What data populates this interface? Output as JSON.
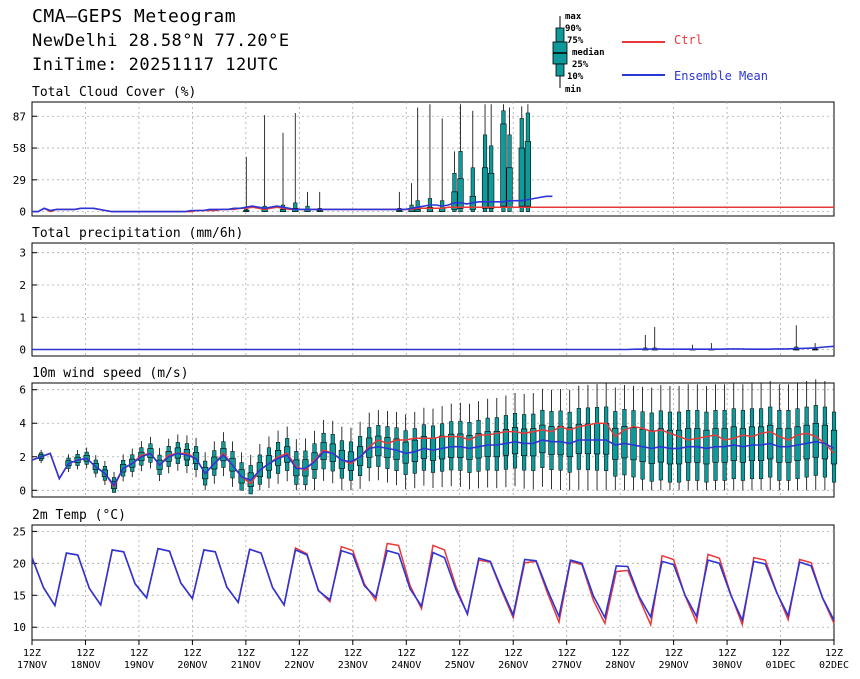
{
  "header": {
    "title": "CMA—GEPS Meteogram",
    "location": "NewDelhi 28.58°N 77.20°E",
    "init_time": "IniTime: 20251117 12UTC"
  },
  "legend": {
    "box_labels": [
      "max",
      "90%",
      "75%",
      "median",
      "25%",
      "10%",
      "min"
    ],
    "ctrl_label": "Ctrl",
    "ctrl_color": "#e8393a",
    "mean_label": "Ensemble Mean",
    "mean_color": "#2c35d6",
    "box_fill": "#0e9a9a"
  },
  "x_axis": {
    "ticks": [
      {
        "hour": "12Z",
        "date": "17NOV"
      },
      {
        "hour": "12Z",
        "date": "18NOV"
      },
      {
        "hour": "12Z",
        "date": "19NOV"
      },
      {
        "hour": "12Z",
        "date": "20NOV"
      },
      {
        "hour": "12Z",
        "date": "21NOV"
      },
      {
        "hour": "12Z",
        "date": "22NOV"
      },
      {
        "hour": "12Z",
        "date": "23NOV"
      },
      {
        "hour": "12Z",
        "date": "24NOV"
      },
      {
        "hour": "12Z",
        "date": "25NOV"
      },
      {
        "hour": "12Z",
        "date": "26NOV"
      },
      {
        "hour": "12Z",
        "date": "27NOV"
      },
      {
        "hour": "12Z",
        "date": "28NOV"
      },
      {
        "hour": "12Z",
        "date": "29NOV"
      },
      {
        "hour": "12Z",
        "date": "30NOV"
      },
      {
        "hour": "12Z",
        "date": "01DEC"
      },
      {
        "hour": "12Z",
        "date": "02DEC"
      }
    ]
  },
  "chart_data": [
    {
      "type": "box-line",
      "title": "Total Cloud Cover (%)",
      "ylim": [
        -4,
        100
      ],
      "yticks": [
        0,
        29,
        58,
        87
      ],
      "grid": true,
      "x_step_hours": 6,
      "ctrl": [
        0,
        0,
        3,
        0,
        2,
        2,
        2,
        2,
        3,
        3,
        3,
        2,
        1,
        0,
        0,
        0,
        0,
        0,
        0,
        0,
        0,
        0,
        0,
        0,
        0,
        0,
        0,
        1,
        1,
        1,
        1,
        2,
        2,
        2,
        3,
        3,
        4,
        3,
        2,
        3,
        4,
        3,
        2,
        2,
        2,
        2,
        2,
        2,
        2,
        2,
        2,
        2,
        2,
        2,
        2,
        2,
        2,
        2,
        2,
        2,
        2,
        2,
        2,
        3,
        3,
        3,
        3,
        3,
        4,
        4,
        4,
        4,
        4,
        4,
        4,
        4,
        4,
        4,
        4,
        4,
        4,
        4,
        4,
        4,
        4,
        4,
        4,
        4,
        4,
        4,
        4,
        4,
        4,
        4,
        4,
        4,
        4,
        4,
        4,
        4,
        4,
        4,
        4,
        4,
        4,
        4,
        4,
        4,
        4,
        4,
        4,
        4,
        4,
        4,
        4,
        4,
        4,
        4,
        4,
        4,
        4,
        4,
        4,
        4,
        4,
        4,
        4,
        4,
        4,
        4,
        4,
        4
      ],
      "mean": [
        0,
        0,
        3,
        1,
        2,
        2,
        2,
        2,
        3,
        3,
        3,
        2,
        1,
        0,
        0,
        0,
        0,
        0,
        0,
        0,
        0,
        0,
        0,
        0,
        0,
        0,
        1,
        1,
        1,
        2,
        2,
        2,
        2,
        3,
        3,
        4,
        5,
        4,
        3,
        4,
        5,
        4,
        3,
        2,
        2,
        2,
        2,
        2,
        2,
        2,
        2,
        2,
        2,
        2,
        2,
        2,
        2,
        2,
        2,
        2,
        2,
        2,
        3,
        4,
        5,
        6,
        6,
        5,
        6,
        8,
        8,
        7,
        8,
        9,
        9,
        9,
        9,
        9,
        10,
        10,
        10,
        11,
        12,
        13,
        14,
        14
      ],
      "boxes": [
        {
          "i": 35,
          "min": 0,
          "max": 50,
          "q25": 0,
          "q75": 1,
          "p10": 0,
          "p90": 2
        },
        {
          "i": 38,
          "min": 0,
          "max": 88,
          "q25": 0,
          "q75": 2,
          "p10": 0,
          "p90": 5
        },
        {
          "i": 41,
          "min": 0,
          "max": 72,
          "q25": 0,
          "q75": 2,
          "p10": 0,
          "p90": 6
        },
        {
          "i": 43,
          "min": 0,
          "max": 90,
          "q25": 0,
          "q75": 3,
          "p10": 0,
          "p90": 8
        },
        {
          "i": 45,
          "min": 0,
          "max": 18,
          "q25": 0,
          "q75": 2,
          "p10": 0,
          "p90": 5
        },
        {
          "i": 47,
          "min": 0,
          "max": 18,
          "q25": 0,
          "q75": 1,
          "p10": 0,
          "p90": 3
        },
        {
          "i": 60,
          "min": 0,
          "max": 18,
          "q25": 0,
          "q75": 1,
          "p10": 0,
          "p90": 3
        },
        {
          "i": 62,
          "min": 0,
          "max": 26,
          "q25": 0,
          "q75": 2,
          "p10": 0,
          "p90": 6
        },
        {
          "i": 63,
          "min": 0,
          "max": 95,
          "q25": 0,
          "q75": 2,
          "p10": 0,
          "p90": 10
        },
        {
          "i": 65,
          "min": 0,
          "max": 98,
          "q25": 0,
          "q75": 4,
          "p10": 0,
          "p90": 12
        },
        {
          "i": 67,
          "min": 0,
          "max": 85,
          "q25": 0,
          "q75": 3,
          "p10": 0,
          "p90": 10
        },
        {
          "i": 69,
          "min": 0,
          "max": 55,
          "q25": 2,
          "q75": 18,
          "p10": 0,
          "p90": 35
        },
        {
          "i": 70,
          "min": 0,
          "max": 98,
          "q25": 3,
          "q75": 30,
          "p10": 0,
          "p90": 55
        },
        {
          "i": 72,
          "min": 0,
          "max": 92,
          "q25": 2,
          "q75": 14,
          "p10": 0,
          "p90": 40
        },
        {
          "i": 74,
          "min": 0,
          "max": 98,
          "q25": 3,
          "q75": 40,
          "p10": 0,
          "p90": 70
        },
        {
          "i": 75,
          "min": 0,
          "max": 98,
          "q25": 3,
          "q75": 35,
          "p10": 0,
          "p90": 60
        },
        {
          "i": 77,
          "min": 0,
          "max": 98,
          "q25": 5,
          "q75": 80,
          "p10": 0,
          "p90": 92
        },
        {
          "i": 78,
          "min": 0,
          "max": 95,
          "q25": 4,
          "q75": 40,
          "p10": 0,
          "p90": 70
        },
        {
          "i": 80,
          "min": 0,
          "max": 96,
          "q25": 5,
          "q75": 58,
          "p10": 0,
          "p90": 85
        },
        {
          "i": 81,
          "min": 0,
          "max": 98,
          "q25": 5,
          "q75": 64,
          "p10": 0,
          "p90": 90
        }
      ]
    },
    {
      "type": "box-line",
      "title": "Total precipitation (mm/6h)",
      "ylim": [
        -0.2,
        3.3
      ],
      "yticks": [
        0,
        1,
        2,
        3
      ],
      "grid": true,
      "x_step_hours": 6,
      "ctrl": [
        0
      ],
      "mean": [
        0,
        0,
        0,
        0,
        0,
        0,
        0,
        0,
        0,
        0,
        0,
        0,
        0,
        0,
        0,
        0,
        0,
        0,
        0,
        0,
        0,
        0,
        0,
        0,
        0,
        0,
        0,
        0,
        0,
        0,
        0,
        0,
        0,
        0,
        0,
        0,
        0,
        0,
        0,
        0,
        0,
        0,
        0,
        0,
        0,
        0,
        0,
        0,
        0,
        0,
        0,
        0,
        0,
        0,
        0,
        0,
        0,
        0,
        0,
        0,
        0,
        0,
        0,
        0,
        0.01,
        0.01,
        0.02,
        0.01,
        0.01,
        0.01,
        0.01,
        0.01,
        0.01,
        0.01,
        0.02,
        0.02,
        0.01,
        0.01,
        0.01,
        0.02,
        0.02,
        0.03,
        0.04,
        0.05,
        0.08,
        0.1
      ],
      "boxes": [
        {
          "i": 65,
          "min": 0,
          "max": 0.45,
          "q25": 0,
          "q75": 0,
          "p10": 0,
          "p90": 0.05
        },
        {
          "i": 66,
          "min": 0,
          "max": 0.7,
          "q25": 0,
          "q75": 0,
          "p10": 0,
          "p90": 0.05
        },
        {
          "i": 70,
          "min": 0,
          "max": 0.15,
          "q25": 0,
          "q75": 0,
          "p10": 0,
          "p90": 0.02
        },
        {
          "i": 72,
          "min": 0,
          "max": 0.2,
          "q25": 0,
          "q75": 0,
          "p10": 0,
          "p90": 0.02
        },
        {
          "i": 81,
          "min": 0,
          "max": 0.75,
          "q25": 0,
          "q75": 0,
          "p10": 0,
          "p90": 0.08
        },
        {
          "i": 83,
          "min": 0,
          "max": 0.2,
          "q25": 0,
          "q75": 0,
          "p10": 0,
          "p90": 0.03
        }
      ]
    },
    {
      "type": "box-line",
      "title": "10m wind speed (m/s)",
      "ylim": [
        -0.4,
        6.4
      ],
      "yticks": [
        0,
        2,
        4,
        6
      ],
      "grid": true,
      "x_step_hours": 6,
      "ctrl": [
        1.8,
        2.0,
        2.2,
        0.7,
        1.6,
        1.8,
        1.9,
        1.4,
        1.0,
        0.2,
        1.3,
        1.6,
        2.1,
        2.2,
        1.5,
        2.1,
        2.2,
        2.2,
        1.9,
        1.0,
        1.6,
        2.2,
        1.5,
        0.8,
        0.4,
        1.2,
        1.6,
        2.0,
        2.2,
        1.4,
        1.2,
        1.8,
        2.4,
        2.2,
        1.8,
        1.6,
        2.0,
        2.6,
        3.0,
        2.8,
        3.0,
        3.0,
        3.1,
        3.1,
        3.1,
        3.2,
        3.2,
        3.2,
        3.0,
        3.3,
        3.3,
        3.4,
        3.5,
        3.5,
        3.4,
        3.5,
        3.6,
        3.5,
        3.8,
        3.6,
        3.8,
        3.9,
        4.0,
        4.0,
        3.2,
        3.6,
        3.8,
        3.7,
        3.5,
        3.6,
        3.4,
        3.2,
        3.0,
        3.1,
        3.2,
        3.3,
        3.0,
        3.1,
        3.3,
        3.2,
        3.4,
        3.5,
        3.2,
        3.0,
        3.3,
        3.4,
        3.2,
        2.8,
        2.2
      ],
      "mean": [
        1.8,
        2.0,
        2.2,
        0.7,
        1.6,
        1.8,
        1.9,
        1.4,
        1.0,
        0.3,
        1.3,
        1.6,
        2.0,
        2.2,
        1.5,
        2.0,
        2.2,
        2.1,
        1.9,
        1.0,
        1.6,
        2.1,
        1.5,
        0.8,
        0.6,
        1.2,
        1.6,
        1.9,
        2.1,
        1.3,
        1.3,
        1.7,
        2.3,
        2.2,
        1.8,
        1.7,
        2.0,
        2.5,
        2.6,
        2.5,
        2.4,
        2.2,
        2.3,
        2.5,
        2.4,
        2.5,
        2.6,
        2.6,
        2.5,
        2.6,
        2.7,
        2.7,
        2.8,
        2.9,
        2.8,
        2.8,
        3.0,
        2.9,
        2.9,
        2.8,
        3.0,
        3.0,
        3.0,
        3.0,
        2.7,
        2.8,
        2.7,
        2.6,
        2.5,
        2.6,
        2.5,
        2.5,
        2.6,
        2.6,
        2.5,
        2.6,
        2.6,
        2.7,
        2.6,
        2.7,
        2.7,
        2.8,
        2.6,
        2.6,
        2.7,
        2.8,
        2.9,
        2.8,
        2.5
      ],
      "boxes": "auto"
    },
    {
      "type": "box-line",
      "title": "2m Temp (°C)",
      "ylim": [
        8,
        26
      ],
      "yticks": [
        10,
        15,
        20,
        25
      ],
      "grid": true,
      "x_step_hours": 6,
      "ctrl": [
        20.9,
        16.2,
        13.4,
        21.6,
        21.3,
        16.1,
        13.5,
        22.1,
        21.8,
        16.8,
        14.6,
        22.3,
        21.9,
        16.9,
        14.5,
        22.1,
        21.8,
        16.3,
        13.9,
        22.2,
        21.6,
        16.2,
        13.5,
        22.4,
        21.5,
        15.8,
        14.0,
        22.6,
        22.0,
        16.8,
        14.2,
        23.1,
        22.8,
        16.5,
        12.9,
        22.8,
        22.1,
        16.4,
        12.0,
        20.5,
        20.2,
        15.7,
        11.5,
        20.1,
        20.3,
        15.3,
        10.8,
        20.3,
        19.8,
        14.2,
        10.6,
        18.7,
        18.9,
        14.5,
        10.4,
        21.2,
        20.6,
        14.9,
        10.8,
        21.4,
        20.8,
        15.1,
        10.4,
        20.9,
        20.5,
        15.5,
        11.2,
        20.6,
        20.1,
        14.6,
        10.6
      ],
      "mean": [
        20.9,
        16.2,
        13.4,
        21.6,
        21.3,
        16.1,
        13.5,
        22.1,
        21.8,
        16.8,
        14.6,
        22.3,
        21.9,
        16.9,
        14.5,
        22.1,
        21.8,
        16.3,
        13.9,
        22.2,
        21.6,
        16.2,
        13.5,
        22.1,
        21.3,
        15.7,
        14.3,
        22.0,
        21.4,
        16.5,
        14.7,
        22.0,
        21.5,
        16.0,
        13.3,
        21.7,
        20.9,
        15.9,
        12.1,
        20.8,
        20.3,
        16.0,
        11.9,
        20.6,
        20.4,
        15.8,
        11.7,
        20.5,
        20.0,
        14.9,
        11.5,
        19.6,
        19.5,
        14.8,
        11.6,
        20.3,
        19.8,
        15.0,
        11.7,
        20.5,
        20.0,
        15.0,
        11.1,
        20.3,
        19.9,
        15.4,
        11.8,
        20.2,
        19.6,
        14.6,
        11.1
      ]
    }
  ]
}
